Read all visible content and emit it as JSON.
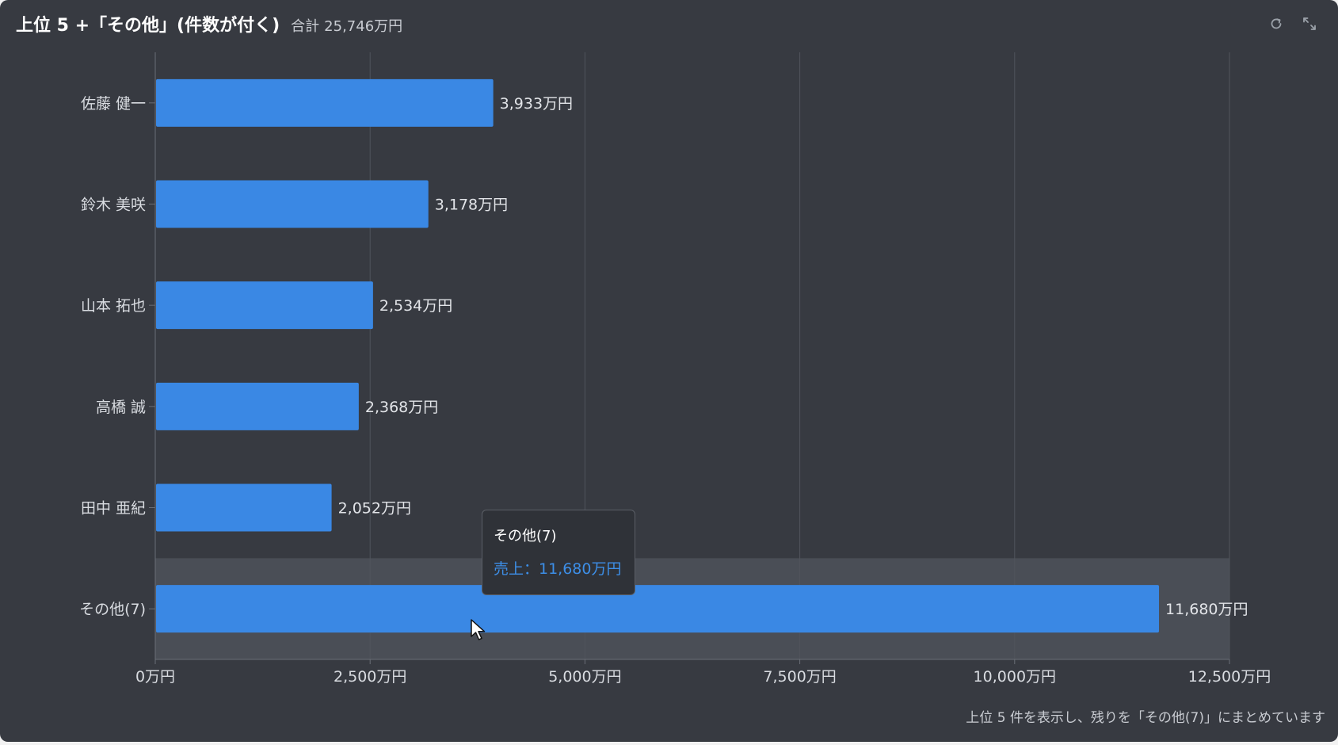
{
  "header": {
    "title": "上位 5 +「その他」(件数が付く)",
    "total_label": "合計",
    "total_value": "25,746万円"
  },
  "toolbar": {
    "refresh_icon": "refresh-icon",
    "expand_icon": "expand-icon"
  },
  "tooltip": {
    "name": "その他(7)",
    "value_text": "売上：11,680万円"
  },
  "footnote": "上位 5 件を表示し、残りを「その他(7)」にまとめています",
  "colors": {
    "background": "#373a41",
    "bar": "#3a88e4",
    "grid": "#50545c",
    "highlight_band": "#4a4e56",
    "tooltip_value": "#3d8fe8"
  },
  "chart_data": {
    "type": "bar",
    "orientation": "horizontal",
    "unit": "万円",
    "categories": [
      "佐藤 健一",
      "鈴木 美咲",
      "山本 拓也",
      "高橋 誠",
      "田中 亜紀",
      "その他(7)"
    ],
    "values": [
      3933,
      3178,
      2534,
      2368,
      2052,
      11680
    ],
    "value_labels": [
      "3,933万円",
      "3,178万円",
      "2,534万円",
      "2,368万円",
      "2,052万円",
      "11,680万円"
    ],
    "xlim": [
      0,
      12500
    ],
    "xticks": [
      0,
      2500,
      5000,
      7500,
      10000,
      12500
    ],
    "xtick_labels": [
      "0万円",
      "2,500万円",
      "5,000万円",
      "7,500万円",
      "10,000万円",
      "12,500万円"
    ],
    "highlighted_category": "その他(7)",
    "grid": true
  }
}
